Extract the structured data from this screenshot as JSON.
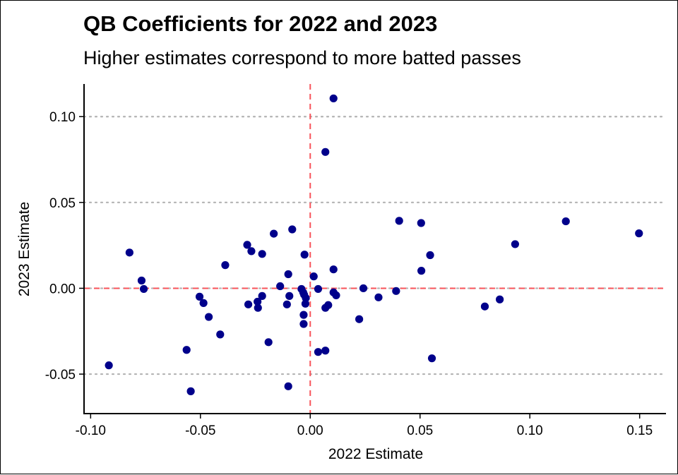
{
  "chart_data": {
    "type": "scatter",
    "title": "QB Coefficients for 2022 and 2023",
    "subtitle": "Higher estimates correspond to more batted passes",
    "xlabel": "2022 Estimate",
    "ylabel": "2023 Estimate",
    "xlim": [
      -0.103,
      0.162
    ],
    "ylim": [
      -0.073,
      0.119
    ],
    "xticks": [
      -0.1,
      -0.05,
      0.0,
      0.05,
      0.1,
      0.15
    ],
    "xtick_labels": [
      "-0.10",
      "-0.05",
      "0.00",
      "0.05",
      "0.10",
      "0.15"
    ],
    "yticks": [
      -0.05,
      0.0,
      0.05,
      0.1
    ],
    "ytick_labels": [
      "-0.05",
      "0.00",
      "0.05",
      "0.10"
    ],
    "grid": "horizontal dotted at y ticks",
    "reference_lines": [
      {
        "axis": "x",
        "value": 0
      },
      {
        "axis": "y",
        "value": 0
      }
    ],
    "colors": {
      "points": "#00008b",
      "reference": "#f8535a",
      "grid": "#b3b3b3"
    },
    "points": [
      {
        "x": 0.0106,
        "y": 0.1106
      },
      {
        "x": 0.0069,
        "y": 0.0794
      },
      {
        "x": 0.0405,
        "y": 0.0393
      },
      {
        "x": 0.0505,
        "y": 0.038
      },
      {
        "x": 0.1164,
        "y": 0.039
      },
      {
        "x": 0.1497,
        "y": 0.032
      },
      {
        "x": 0.0933,
        "y": 0.0257
      },
      {
        "x": 0.0546,
        "y": 0.0193
      },
      {
        "x": 0.0506,
        "y": 0.0102
      },
      {
        "x": 0.0106,
        "y": 0.011
      },
      {
        "x": 0.0391,
        "y": -0.0016
      },
      {
        "x": 0.0242,
        "y": 0.0
      },
      {
        "x": 0.0311,
        "y": -0.0053
      },
      {
        "x": 0.0795,
        "y": -0.0106
      },
      {
        "x": 0.0863,
        "y": -0.0065
      },
      {
        "x": 0.0223,
        "y": -0.018
      },
      {
        "x": 0.0554,
        "y": -0.0408
      },
      {
        "x": 0.0069,
        "y": -0.0363
      },
      {
        "x": 0.0036,
        "y": -0.0371
      },
      {
        "x": 0.0082,
        "y": -0.0098
      },
      {
        "x": 0.0069,
        "y": -0.0114
      },
      {
        "x": 0.0118,
        "y": -0.0041
      },
      {
        "x": 0.0106,
        "y": -0.0024
      },
      {
        "x": 0.0036,
        "y": -0.0004
      },
      {
        "x": 0.0016,
        "y": 0.0069
      },
      {
        "x": -0.0026,
        "y": 0.0196
      },
      {
        "x": -0.0082,
        "y": 0.0343
      },
      {
        "x": -0.0166,
        "y": 0.0318
      },
      {
        "x": -0.0287,
        "y": 0.0253
      },
      {
        "x": -0.0268,
        "y": 0.0216
      },
      {
        "x": -0.0219,
        "y": 0.02
      },
      {
        "x": -0.0387,
        "y": 0.0135
      },
      {
        "x": -0.0823,
        "y": 0.0208
      },
      {
        "x": -0.0768,
        "y": 0.0045
      },
      {
        "x": -0.0758,
        "y": -0.0004
      },
      {
        "x": -0.0504,
        "y": -0.0049
      },
      {
        "x": -0.0486,
        "y": -0.0086
      },
      {
        "x": -0.0462,
        "y": -0.0167
      },
      {
        "x": -0.041,
        "y": -0.0269
      },
      {
        "x": -0.0563,
        "y": -0.0359
      },
      {
        "x": -0.0544,
        "y": -0.06
      },
      {
        "x": -0.0917,
        "y": -0.0449
      },
      {
        "x": -0.0282,
        "y": -0.0094
      },
      {
        "x": -0.024,
        "y": -0.0078
      },
      {
        "x": -0.0238,
        "y": -0.0114
      },
      {
        "x": -0.0219,
        "y": -0.0045
      },
      {
        "x": -0.019,
        "y": -0.0314
      },
      {
        "x": -0.0137,
        "y": 0.0012
      },
      {
        "x": -0.01,
        "y": 0.0082
      },
      {
        "x": -0.0106,
        "y": -0.0094
      },
      {
        "x": -0.0095,
        "y": -0.0045
      },
      {
        "x": -0.01,
        "y": -0.0571
      },
      {
        "x": -0.004,
        "y": -0.0004
      },
      {
        "x": -0.0032,
        "y": -0.0024
      },
      {
        "x": -0.0028,
        "y": -0.0037
      },
      {
        "x": -0.002,
        "y": -0.0057
      },
      {
        "x": -0.0022,
        "y": -0.009
      },
      {
        "x": -0.003,
        "y": -0.0155
      },
      {
        "x": -0.003,
        "y": -0.0208
      }
    ]
  }
}
